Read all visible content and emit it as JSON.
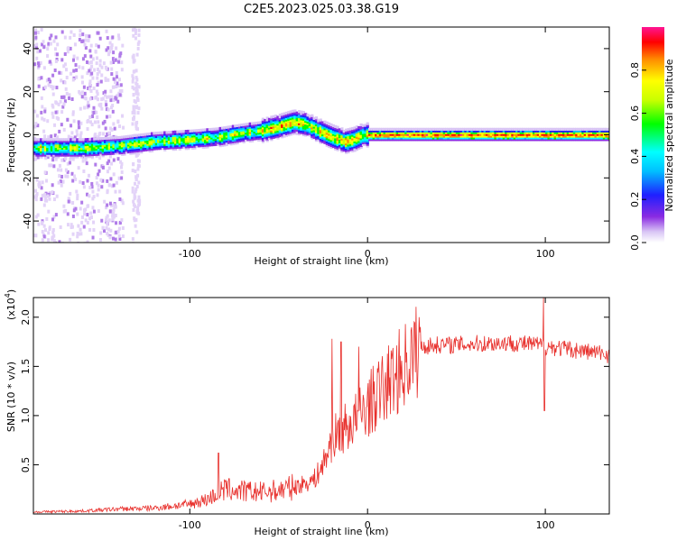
{
  "title": "C2E5.2023.025.03.38.G19",
  "chart_data": [
    {
      "type": "heatmap",
      "xlabel": "Height of straight line (km)",
      "ylabel": "Frequency (Hz)",
      "xlim": [
        -188,
        136
      ],
      "ylim": [
        -50,
        50
      ],
      "xticks": [
        -100,
        0,
        100
      ],
      "yticks": [
        -40,
        -20,
        0,
        20,
        40
      ],
      "ridge": {
        "x": [
          -185,
          -160,
          -140,
          -120,
          -100,
          -85,
          -70,
          -60,
          -50,
          -42,
          -35,
          -28,
          -20,
          -13,
          -8,
          -3,
          0,
          10,
          50,
          90,
          93,
          96,
          130,
          136
        ],
        "y": [
          -6,
          -6,
          -5,
          -3,
          -2,
          -1,
          1,
          2,
          4,
          6,
          5,
          2,
          -1,
          -3,
          -2,
          0,
          0,
          0,
          0,
          0,
          0,
          0,
          0,
          0
        ]
      },
      "colorbar": {
        "label": "Normalized spectral amplitude",
        "ticks": [
          0.0,
          0.2,
          0.4,
          0.6,
          0.8
        ],
        "colormap": [
          "#ffffff",
          "#d9c6f5",
          "#8a2be2",
          "#1f1fff",
          "#00bfff",
          "#00ffff",
          "#00ff00",
          "#c8ff00",
          "#ffff00",
          "#ff8c00",
          "#ff0000",
          "#ff1493"
        ]
      }
    },
    {
      "type": "line",
      "xlabel": "Height of straight line (km)",
      "ylabel": "SNR (10 * v/v)",
      "yscale_label": "(x10",
      "yscale_exp": "4",
      "yscale_close": ")",
      "xlim": [
        -188,
        136
      ],
      "ylim": [
        0,
        2.2
      ],
      "xticks": [
        -100,
        0,
        100
      ],
      "yticks": [
        0.5,
        1.0,
        1.5,
        2.0
      ],
      "color": "#e8302c",
      "envelope": {
        "x": [
          -188,
          -160,
          -140,
          -120,
          -110,
          -100,
          -90,
          -80,
          -70,
          -60,
          -50,
          -40,
          -30,
          -25,
          -20,
          -15,
          -10,
          -5,
          0,
          5,
          10,
          15,
          20,
          25,
          30,
          40,
          50,
          60,
          80,
          95,
          110,
          125,
          136
        ],
        "y": [
          0.02,
          0.03,
          0.05,
          0.06,
          0.08,
          0.1,
          0.15,
          0.25,
          0.23,
          0.22,
          0.24,
          0.28,
          0.35,
          0.5,
          0.75,
          0.85,
          0.9,
          1.0,
          1.1,
          1.2,
          1.3,
          1.4,
          1.5,
          1.6,
          1.7,
          1.72,
          1.72,
          1.73,
          1.74,
          1.72,
          1.68,
          1.65,
          1.62
        ]
      },
      "spikes": [
        {
          "x": 99,
          "y": 2.2
        },
        {
          "x": 99.5,
          "y": 1.05
        },
        {
          "x": -15,
          "y": 1.75
        },
        {
          "x": -5,
          "y": 1.7
        },
        {
          "x": -84,
          "y": 0.62
        },
        {
          "x": -20,
          "y": 1.78
        }
      ]
    }
  ]
}
